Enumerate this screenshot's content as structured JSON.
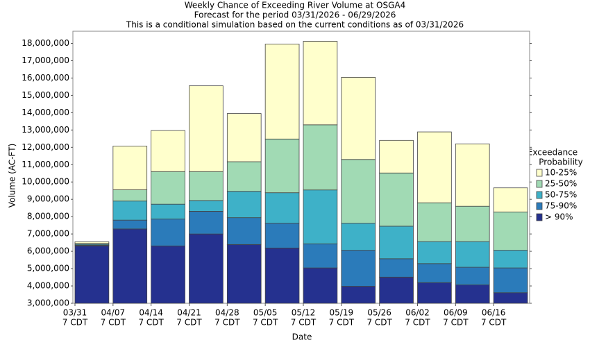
{
  "chart_data": {
    "type": "bar",
    "title": "Weekly Chance of Exceeding River Volume at OSGA4",
    "subtitle": "Forecast for the period 03/31/2026 - 06/29/2026",
    "note": "This is a conditional simulation based on the current conditions as of 03/31/2026",
    "x_label": "Date",
    "y_label": "Volume (AC-FT)",
    "legend_title": [
      "Exceedance",
      "Probability"
    ],
    "legend": "right",
    "categories": [
      [
        "03/31",
        "7 CDT"
      ],
      [
        "04/07",
        "7 CDT"
      ],
      [
        "04/14",
        "7 CDT"
      ],
      [
        "04/21",
        "7 CDT"
      ],
      [
        "04/28",
        "7 CDT"
      ],
      [
        "05/05",
        "7 CDT"
      ],
      [
        "05/12",
        "7 CDT"
      ],
      [
        "05/19",
        "7 CDT"
      ],
      [
        "05/26",
        "7 CDT"
      ],
      [
        "06/02",
        "7 CDT"
      ],
      [
        "06/09",
        "7 CDT"
      ],
      [
        "06/16",
        "7 CDT"
      ]
    ],
    "series": [
      {
        "name": "> 90%",
        "color": "#25318f",
        "values": [
          6310000,
          7290000,
          6310000,
          7000000,
          6390000,
          6190000,
          5040000,
          3980000,
          4510000,
          4190000,
          4060000,
          3610000
        ]
      },
      {
        "name": "75-90%",
        "color": "#2b7bba",
        "values": [
          6350000,
          7800000,
          7860000,
          8310000,
          7940000,
          7620000,
          6430000,
          6060000,
          5570000,
          5290000,
          5080000,
          5040000
        ]
      },
      {
        "name": "50-75%",
        "color": "#3eb1c8",
        "values": [
          6400000,
          8900000,
          8720000,
          8930000,
          9460000,
          9380000,
          9540000,
          7620000,
          7450000,
          6560000,
          6560000,
          6060000
        ]
      },
      {
        "name": "25-50%",
        "color": "#a1dab4",
        "values": [
          6450000,
          9550000,
          10600000,
          10600000,
          11170000,
          12480000,
          13300000,
          11300000,
          10520000,
          8800000,
          8600000,
          8270000
        ]
      },
      {
        "name": "10-25%",
        "color": "#ffffcc",
        "values": [
          6550000,
          12070000,
          12970000,
          15550000,
          13950000,
          17960000,
          18120000,
          16040000,
          12400000,
          12890000,
          12200000,
          9660000
        ]
      }
    ],
    "ylim": [
      3000000,
      18700000
    ],
    "yticks": [
      {
        "value": 3000000,
        "label": "3,000,000"
      },
      {
        "value": 4000000,
        "label": "4,000,000"
      },
      {
        "value": 5000000,
        "label": "5,000,000"
      },
      {
        "value": 6000000,
        "label": "6,000,000"
      },
      {
        "value": 7000000,
        "label": "7,000,000"
      },
      {
        "value": 8000000,
        "label": "8,000,000"
      },
      {
        "value": 9000000,
        "label": "9,000,000"
      },
      {
        "value": 10000000,
        "label": "10,000,000"
      },
      {
        "value": 11000000,
        "label": "11,000,000"
      },
      {
        "value": 12000000,
        "label": "12,000,000"
      },
      {
        "value": 13000000,
        "label": "13,000,000"
      },
      {
        "value": 14000000,
        "label": "14,000,000"
      },
      {
        "value": 15000000,
        "label": "15,000,000"
      },
      {
        "value": 16000000,
        "label": "16,000,000"
      },
      {
        "value": 17000000,
        "label": "17,000,000"
      },
      {
        "value": 18000000,
        "label": "18,000,000"
      }
    ],
    "grid": false
  }
}
